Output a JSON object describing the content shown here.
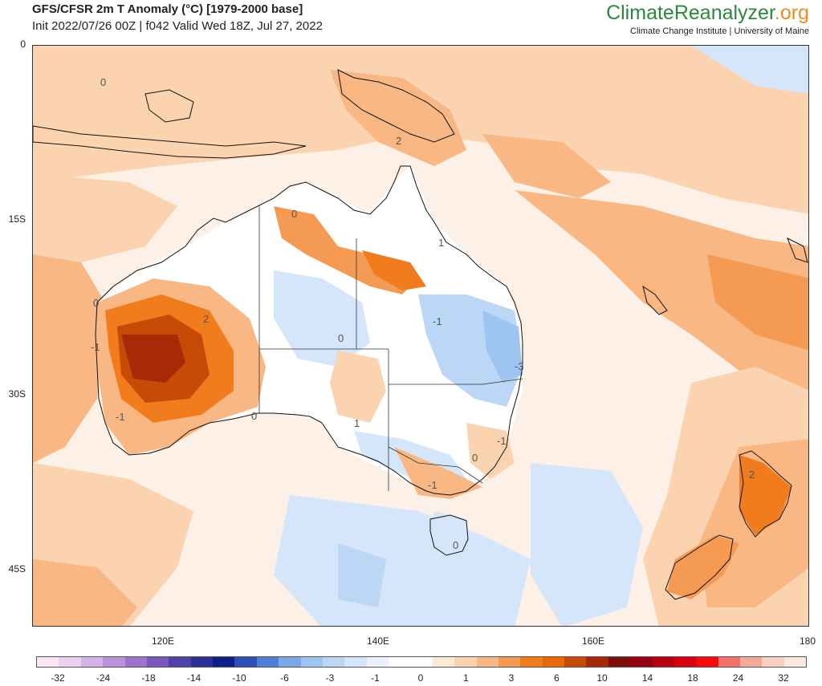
{
  "header": {
    "title": "GFS/CFSR 2m T Anomaly (°C) [1979-2000 base]",
    "subtitle": "Init 2022/07/26 00Z | f042 Valid Wed 18Z, Jul 27, 2022"
  },
  "brand": {
    "name_part1": "Climate",
    "name_part2": "Reanalyzer",
    "name_part3": ".org",
    "tagline": "Climate Change Institute | University of Maine"
  },
  "axes": {
    "y_ticks": [
      "0",
      "15S",
      "30S",
      "45S"
    ],
    "x_ticks": [
      "120E",
      "140E",
      "160E",
      "180"
    ]
  },
  "contour_labels": [
    "0",
    "2",
    "0",
    "-1",
    "0",
    "2",
    "-1",
    "0",
    "-3",
    "0",
    "1",
    "-1",
    "1",
    "0",
    "-1",
    "-1",
    "0",
    "2"
  ],
  "colorbar": {
    "labels": [
      "-32",
      "-24",
      "-18",
      "-14",
      "-10",
      "-6",
      "-3",
      "-1",
      "0",
      "1",
      "3",
      "6",
      "10",
      "14",
      "18",
      "24",
      "32"
    ],
    "colors": [
      "#fbe8f4",
      "#e9d2ee",
      "#d4b2e6",
      "#bb92dc",
      "#9c72cc",
      "#7a58be",
      "#5042a8",
      "#2b2f98",
      "#101e8c",
      "#2f4fb8",
      "#4f7fd4",
      "#79a8e8",
      "#9ec4f2",
      "#bcd6f6",
      "#d5e5fa",
      "#eaf2fd",
      "#ffffff",
      "#ffffff",
      "#fde8d6",
      "#fbd3b0",
      "#f8b783",
      "#f59a52",
      "#f07c1e",
      "#e96a06",
      "#c74a06",
      "#a62a06",
      "#7e0e08",
      "#960012",
      "#b8000e",
      "#d8000e",
      "#f80a0a",
      "#f6706a",
      "#f6a89a",
      "#f8d0c0",
      "#fbe8e0"
    ]
  }
}
